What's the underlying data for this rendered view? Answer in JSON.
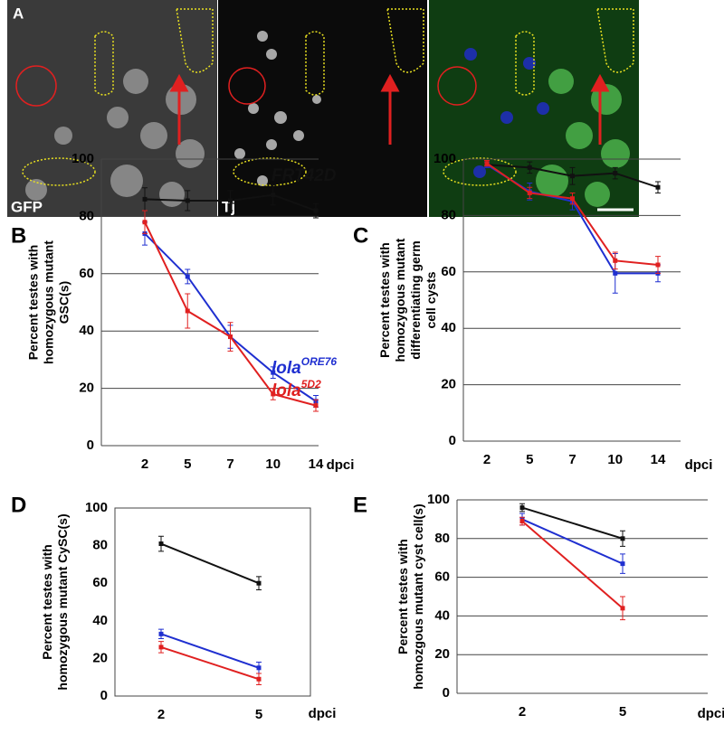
{
  "image_panel": {
    "label": "A",
    "channels": [
      "GFP",
      "Tj"
    ]
  },
  "chart_data": [
    {
      "type": "line",
      "panel_label": "B",
      "ylabel": [
        "Percent testes with",
        "homozygous mutant",
        "GSC(s)"
      ],
      "xlabel": "dpci",
      "categories": [
        "2",
        "5",
        "7",
        "10",
        "14"
      ],
      "ylim": [
        0,
        100
      ],
      "yticks": [
        0,
        20,
        40,
        60,
        80,
        100
      ],
      "grid": true,
      "series": [
        {
          "name": "FRT42D",
          "color": "#111111",
          "values": [
            86,
            85.5,
            85.5,
            87.5,
            82
          ],
          "errors": [
            4,
            3.5,
            3.5,
            3.5,
            2.5
          ]
        },
        {
          "name": "lola",
          "superscript": "ORE76",
          "color": "#1f2fd0",
          "values": [
            74,
            59,
            38,
            25.5,
            15.5
          ],
          "errors": [
            4,
            2.5,
            4,
            2,
            2
          ]
        },
        {
          "name": "lola",
          "superscript": "5D2",
          "color": "#e02020",
          "values": [
            78,
            47,
            38,
            18,
            14
          ],
          "errors": [
            4,
            6,
            5,
            2,
            2
          ]
        }
      ]
    },
    {
      "type": "line",
      "panel_label": "C",
      "ylabel": [
        "Percent testes with",
        "homozygous mutant",
        "differentiating germ",
        "cell cysts"
      ],
      "xlabel": "dpci",
      "categories": [
        "2",
        "5",
        "7",
        "10",
        "14"
      ],
      "ylim": [
        0,
        100
      ],
      "yticks": [
        0,
        20,
        40,
        60,
        80,
        100
      ],
      "grid": true,
      "series": [
        {
          "color": "#111111",
          "values": [
            98,
            97,
            94,
            95,
            90
          ],
          "errors": [
            1,
            2,
            3,
            2,
            2
          ]
        },
        {
          "color": "#1f2fd0",
          "values": [
            98,
            88.5,
            85,
            59.5,
            59.5
          ],
          "errors": [
            1,
            3,
            3,
            7,
            3
          ]
        },
        {
          "color": "#e02020",
          "values": [
            98.5,
            88,
            86,
            64,
            62.5
          ],
          "errors": [
            1,
            2,
            2,
            3,
            3
          ]
        }
      ]
    },
    {
      "type": "line",
      "panel_label": "D",
      "ylabel": [
        "Percent testes with",
        "homozygous mutant CySC(s)"
      ],
      "xlabel": "dpci",
      "categories": [
        "2",
        "5"
      ],
      "ylim": [
        0,
        100
      ],
      "yticks": [
        0,
        20,
        40,
        60,
        80,
        100
      ],
      "grid": false,
      "series": [
        {
          "color": "#111111",
          "values": [
            81,
            60
          ],
          "errors": [
            4,
            3.5
          ]
        },
        {
          "color": "#1f2fd0",
          "values": [
            33,
            15
          ],
          "errors": [
            2.5,
            3
          ]
        },
        {
          "color": "#e02020",
          "values": [
            26,
            9
          ],
          "errors": [
            3,
            3
          ]
        }
      ]
    },
    {
      "type": "line",
      "panel_label": "E",
      "ylabel": [
        "Percent testes with",
        "homozgous mutant cyst cell(s)"
      ],
      "xlabel": "dpci",
      "categories": [
        "2",
        "5"
      ],
      "ylim": [
        0,
        100
      ],
      "yticks": [
        0,
        20,
        40,
        60,
        80,
        100
      ],
      "grid": true,
      "series": [
        {
          "color": "#111111",
          "values": [
            96,
            80
          ],
          "errors": [
            2,
            4
          ]
        },
        {
          "color": "#1f2fd0",
          "values": [
            90,
            67
          ],
          "errors": [
            3,
            5
          ]
        },
        {
          "color": "#e02020",
          "values": [
            89,
            44
          ],
          "errors": [
            2,
            6
          ]
        }
      ]
    }
  ]
}
